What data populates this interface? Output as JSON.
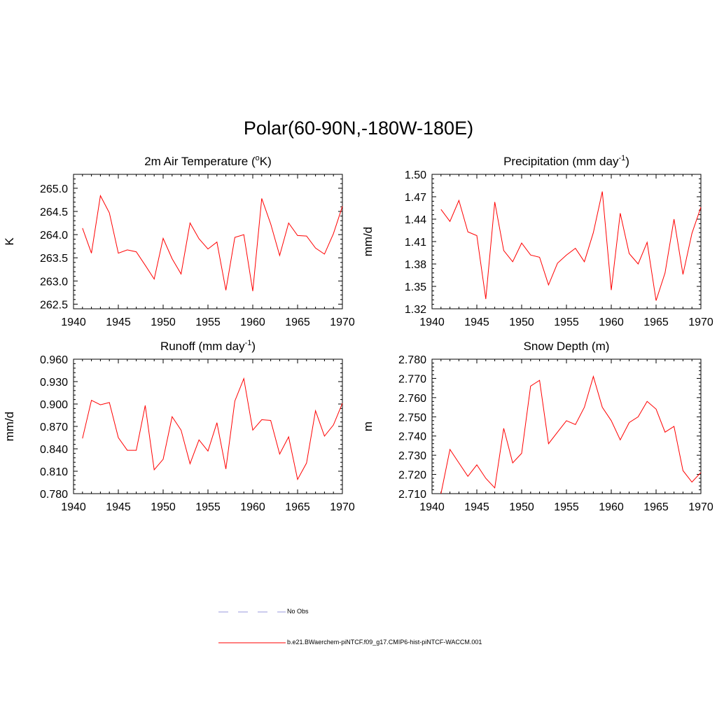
{
  "title": "Polar(60-90N,-180W-180E)",
  "legend": [
    {
      "label": "No Obs",
      "color": "#9999dd",
      "dash": "dashed"
    },
    {
      "label": "b.e21.BWaerchem-piNTCF.f09_g17.CMIP6-hist-piNTCF-WACCM.001",
      "color": "#ff0000",
      "dash": "solid"
    }
  ],
  "chart_data": [
    {
      "type": "line",
      "title_main": "2m Air Temperature (",
      "title_sup": "o",
      "title_end": "K)",
      "ylabel": "K",
      "xlim": [
        1940,
        1970
      ],
      "ylim": [
        262.4,
        265.3
      ],
      "xticks": [
        1940,
        1945,
        1950,
        1955,
        1960,
        1965,
        1970
      ],
      "yticks": [
        "262.5",
        "263.0",
        "263.5",
        "264.0",
        "264.5",
        "265.0"
      ],
      "series": [
        {
          "color": "#ff0000",
          "x": [
            1941,
            1942,
            1943,
            1944,
            1945,
            1946,
            1947,
            1948,
            1949,
            1950,
            1951,
            1952,
            1953,
            1954,
            1955,
            1956,
            1957,
            1958,
            1959,
            1960,
            1961,
            1962,
            1963,
            1964,
            1965,
            1966,
            1967,
            1968,
            1969,
            1970
          ],
          "values": [
            264.14,
            263.6,
            264.84,
            264.47,
            263.6,
            263.67,
            263.63,
            263.34,
            263.04,
            263.92,
            263.48,
            263.15,
            264.25,
            263.91,
            263.69,
            263.84,
            262.8,
            263.94,
            264.0,
            262.78,
            264.78,
            264.23,
            263.55,
            264.25,
            263.98,
            263.97,
            263.71,
            263.58,
            264.02,
            264.61
          ]
        }
      ]
    },
    {
      "type": "line",
      "title_main": "Precipitation (mm day",
      "title_sup": "-1",
      "title_end": ")",
      "ylabel": "mm/d",
      "xlim": [
        1940,
        1970
      ],
      "ylim": [
        1.32,
        1.5
      ],
      "xticks": [
        1940,
        1945,
        1950,
        1955,
        1960,
        1965,
        1970
      ],
      "yticks": [
        "1.32",
        "1.35",
        "1.38",
        "1.41",
        "1.44",
        "1.47",
        "1.50"
      ],
      "series": [
        {
          "color": "#ff0000",
          "x": [
            1941,
            1942,
            1943,
            1944,
            1945,
            1946,
            1947,
            1948,
            1949,
            1950,
            1951,
            1952,
            1953,
            1954,
            1955,
            1956,
            1957,
            1958,
            1959,
            1960,
            1961,
            1962,
            1963,
            1964,
            1965,
            1966,
            1967,
            1968,
            1969,
            1970
          ],
          "values": [
            1.453,
            1.437,
            1.465,
            1.423,
            1.418,
            1.333,
            1.463,
            1.398,
            1.383,
            1.408,
            1.392,
            1.389,
            1.352,
            1.381,
            1.392,
            1.401,
            1.383,
            1.422,
            1.477,
            1.345,
            1.448,
            1.394,
            1.38,
            1.409,
            1.331,
            1.368,
            1.44,
            1.366,
            1.421,
            1.456
          ]
        }
      ]
    },
    {
      "type": "line",
      "title_main": "Runoff (mm day",
      "title_sup": "-1",
      "title_end": ")",
      "ylabel": "mm/d",
      "xlim": [
        1940,
        1970
      ],
      "ylim": [
        0.78,
        0.96
      ],
      "xticks": [
        1940,
        1945,
        1950,
        1955,
        1960,
        1965,
        1970
      ],
      "yticks": [
        "0.780",
        "0.810",
        "0.840",
        "0.870",
        "0.900",
        "0.930",
        "0.960"
      ],
      "series": [
        {
          "color": "#ff0000",
          "x": [
            1941,
            1942,
            1943,
            1944,
            1945,
            1946,
            1947,
            1948,
            1949,
            1950,
            1951,
            1952,
            1953,
            1954,
            1955,
            1956,
            1957,
            1958,
            1959,
            1960,
            1961,
            1962,
            1963,
            1964,
            1965,
            1966,
            1967,
            1968,
            1969,
            1970
          ],
          "values": [
            0.854,
            0.905,
            0.899,
            0.902,
            0.855,
            0.838,
            0.838,
            0.898,
            0.812,
            0.826,
            0.883,
            0.865,
            0.82,
            0.852,
            0.837,
            0.875,
            0.813,
            0.904,
            0.934,
            0.865,
            0.879,
            0.878,
            0.833,
            0.856,
            0.799,
            0.821,
            0.891,
            0.857,
            0.872,
            0.901
          ]
        }
      ]
    },
    {
      "type": "line",
      "title_main": "Snow Depth (m)",
      "title_sup": "",
      "title_end": "",
      "ylabel": "m",
      "xlim": [
        1940,
        1970
      ],
      "ylim": [
        2.71,
        2.78
      ],
      "xticks": [
        1940,
        1945,
        1950,
        1955,
        1960,
        1965,
        1970
      ],
      "yticks": [
        "2.710",
        "2.720",
        "2.730",
        "2.740",
        "2.750",
        "2.760",
        "2.770",
        "2.780"
      ],
      "series": [
        {
          "color": "#ff0000",
          "x": [
            1941,
            1942,
            1943,
            1944,
            1945,
            1946,
            1947,
            1948,
            1949,
            1950,
            1951,
            1952,
            1953,
            1954,
            1955,
            1956,
            1957,
            1958,
            1959,
            1960,
            1961,
            1962,
            1963,
            1964,
            1965,
            1966,
            1967,
            1968,
            1969,
            1970
          ],
          "values": [
            2.71,
            2.733,
            2.726,
            2.719,
            2.725,
            2.718,
            2.713,
            2.744,
            2.726,
            2.731,
            2.766,
            2.769,
            2.736,
            2.742,
            2.748,
            2.746,
            2.755,
            2.771,
            2.755,
            2.748,
            2.738,
            2.747,
            2.75,
            2.758,
            2.754,
            2.742,
            2.745,
            2.722,
            2.716,
            2.721
          ]
        }
      ]
    }
  ]
}
